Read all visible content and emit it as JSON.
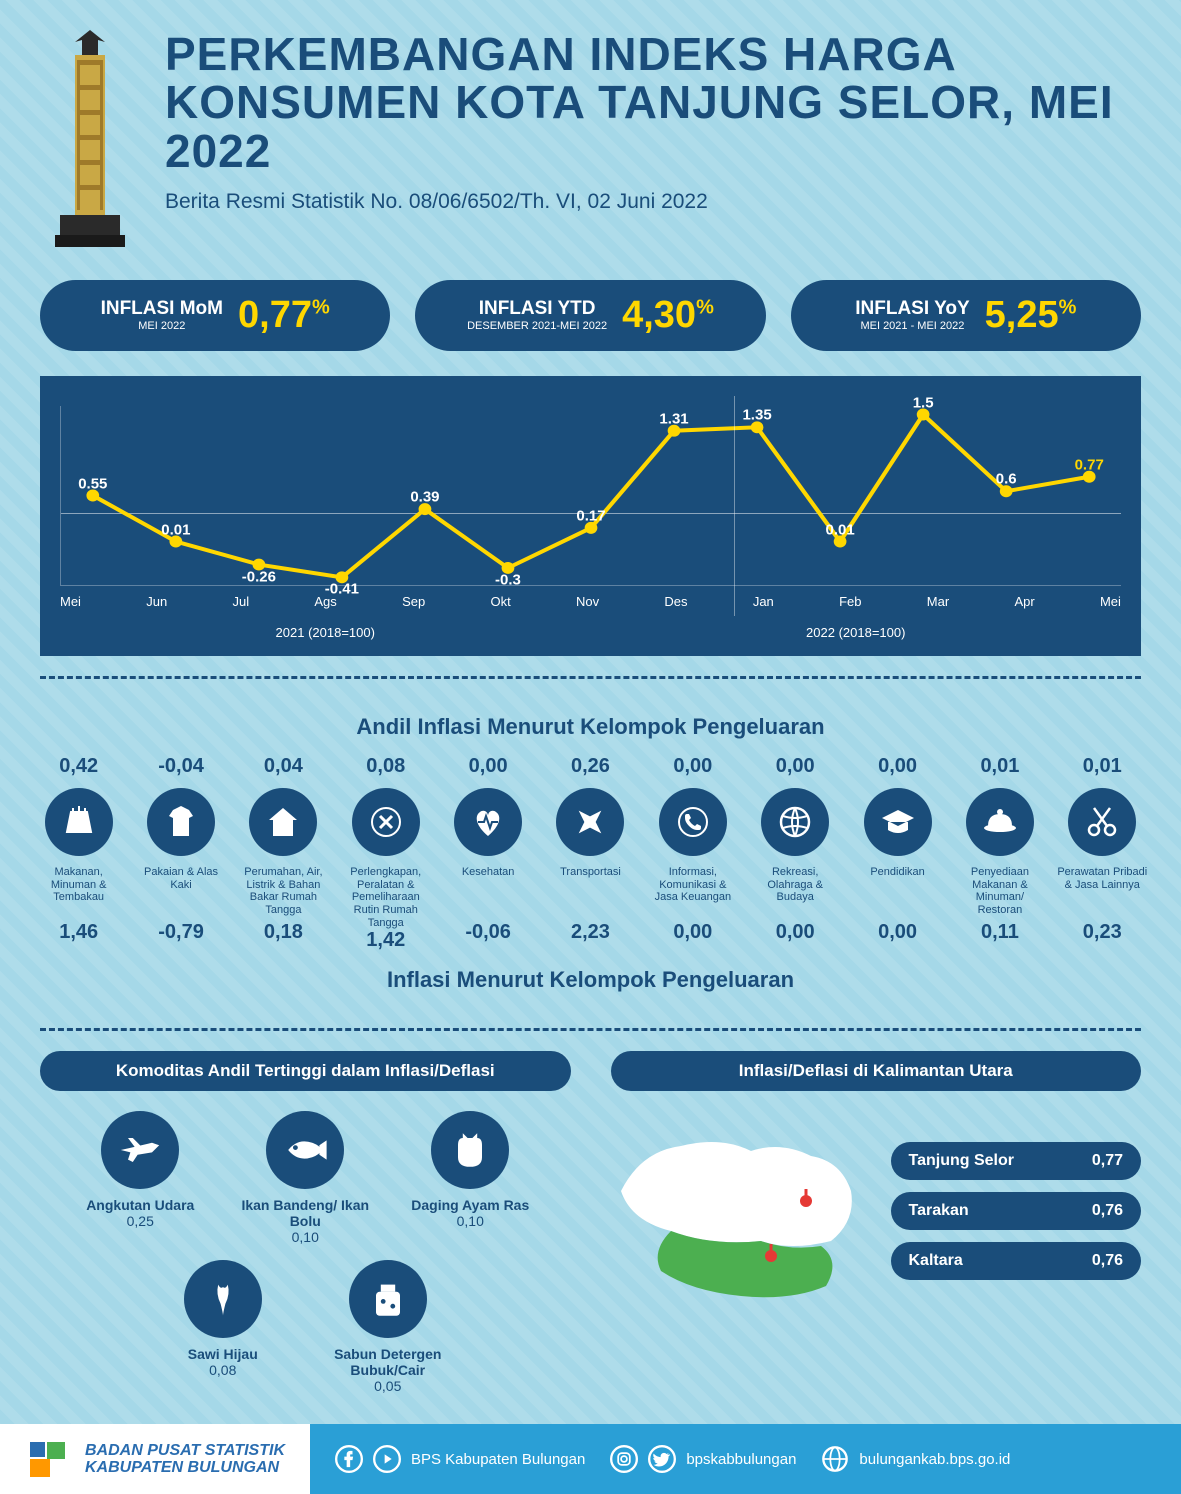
{
  "header": {
    "title": "PERKEMBANGAN INDEKS HARGA KONSUMEN KOTA TANJUNG SELOR, MEI 2022",
    "subtitle": "Berita Resmi Statistik No. 08/06/6502/Th. VI, 02 Juni 2022"
  },
  "pills": [
    {
      "label": "INFLASI MoM",
      "sub": "MEI 2022",
      "value": "0,77",
      "pct": "%"
    },
    {
      "label": "INFLASI YTD",
      "sub": "DESEMBER 2021-MEI 2022",
      "value": "4,30",
      "pct": "%"
    },
    {
      "label": "INFLASI YoY",
      "sub": "MEI 2021 - MEI 2022",
      "value": "5,25",
      "pct": "%"
    }
  ],
  "chart": {
    "type": "line",
    "line_color": "#ffd700",
    "point_color": "#ffd700",
    "bg_color": "#1a4d7a",
    "text_color": "#ffffff",
    "months": [
      "Mei",
      "Jun",
      "Jul",
      "Ags",
      "Sep",
      "Okt",
      "Nov",
      "Des",
      "Jan",
      "Feb",
      "Mar",
      "Apr",
      "Mei"
    ],
    "values": [
      0.55,
      0.01,
      -0.26,
      -0.41,
      0.39,
      -0.3,
      0.17,
      1.31,
      1.35,
      0.01,
      1.5,
      0.6,
      0.77
    ],
    "year_left": "2021 (2018=100)",
    "year_right": "2022 (2018=100)",
    "ylim": [
      -0.5,
      1.6
    ]
  },
  "andil_title": "Andil Inflasi Menurut Kelompok Pengeluaran",
  "inflasi_title": "Inflasi Menurut Kelompok Pengeluaran",
  "categories": [
    {
      "top": "0,42",
      "label": "Makanan, Minuman & Tembakau",
      "bottom": "1,46",
      "icon": "food"
    },
    {
      "top": "-0,04",
      "label": "Pakaian & Alas Kaki",
      "bottom": "-0,79",
      "icon": "shirt"
    },
    {
      "top": "0,04",
      "label": "Perumahan, Air, Listrik & Bahan Bakar Rumah Tangga",
      "bottom": "0,18",
      "icon": "house"
    },
    {
      "top": "0,08",
      "label": "Perlengkapan, Peralatan & Pemeliharaan Rutin Rumah Tangga",
      "bottom": "1,42",
      "icon": "tools"
    },
    {
      "top": "0,00",
      "label": "Kesehatan",
      "bottom": "-0,06",
      "icon": "health"
    },
    {
      "top": "0,26",
      "label": "Transportasi",
      "bottom": "2,23",
      "icon": "plane"
    },
    {
      "top": "0,00",
      "label": "Informasi, Komunikasi & Jasa Keuangan",
      "bottom": "0,00",
      "icon": "phone"
    },
    {
      "top": "0,00",
      "label": "Rekreasi, Olahraga & Budaya",
      "bottom": "0,00",
      "icon": "ball"
    },
    {
      "top": "0,00",
      "label": "Pendidikan",
      "bottom": "0,00",
      "icon": "grad"
    },
    {
      "top": "0,01",
      "label": "Penyediaan Makanan & Minuman/ Restoran",
      "bottom": "0,11",
      "icon": "dish"
    },
    {
      "top": "0,01",
      "label": "Perawatan Pribadi & Jasa Lainnya",
      "bottom": "0,23",
      "icon": "scissors"
    }
  ],
  "commodities_title": "Komoditas Andil Tertinggi dalam Inflasi/Deflasi",
  "commodities": [
    {
      "label": "Angkutan Udara",
      "value": "0,25",
      "icon": "plane2"
    },
    {
      "label": "Ikan Bandeng/ Ikan Bolu",
      "value": "0,10",
      "icon": "fish"
    },
    {
      "label": "Daging Ayam Ras",
      "value": "0,10",
      "icon": "chicken"
    },
    {
      "label": "Sawi Hijau",
      "value": "0,08",
      "icon": "veg"
    },
    {
      "label": "Sabun Detergen Bubuk/Cair",
      "value": "0,05",
      "icon": "soap"
    }
  ],
  "region_title": "Inflasi/Deflasi di Kalimantan Utara",
  "regions": [
    {
      "name": "Tanjung Selor",
      "value": "0,77"
    },
    {
      "name": "Tarakan",
      "value": "0,76"
    },
    {
      "name": "Kaltara",
      "value": "0,76"
    }
  ],
  "footer": {
    "org_line1": "BADAN PUSAT STATISTIK",
    "org_line2": "KABUPATEN BULUNGAN",
    "social1": "BPS Kabupaten Bulungan",
    "social2": "bpskabbulungan",
    "social3": "bulungankab.bps.go.id"
  },
  "colors": {
    "primary": "#1a4d7a",
    "accent": "#ffd700",
    "bg": "#a5d8e8",
    "footer_blue": "#2a9fd6",
    "map_green": "#4caf50"
  }
}
